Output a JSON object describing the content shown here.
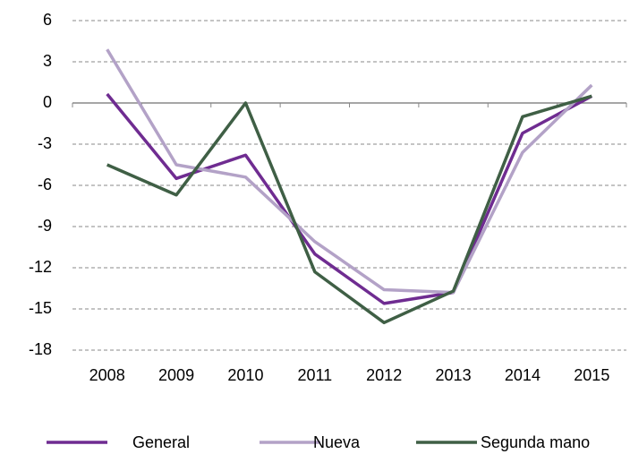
{
  "chart_data": {
    "type": "line",
    "categories": [
      "2008",
      "2009",
      "2010",
      "2011",
      "2012",
      "2013",
      "2014",
      "2015"
    ],
    "series": [
      {
        "name": "General",
        "color": "#6f2c91",
        "values": [
          0.65,
          -5.5,
          -3.8,
          -11,
          -14.6,
          -13.8,
          -2.2,
          0.5
        ]
      },
      {
        "name": "Nueva",
        "color": "#b3a2c7",
        "values": [
          3.9,
          -4.5,
          -5.4,
          -10.1,
          -13.6,
          -13.8,
          -3.6,
          1.3
        ]
      },
      {
        "name": "Segunda mano",
        "color": "#3f5f45",
        "values": [
          -4.5,
          -6.7,
          0,
          -12.3,
          -16,
          -13.7,
          -1,
          0.5
        ]
      }
    ],
    "ylim": [
      -18,
      6
    ],
    "yticks": [
      -18,
      -15,
      -12,
      -9,
      -6,
      -3,
      0,
      3,
      6
    ],
    "grid": true,
    "legend": "bottom"
  }
}
